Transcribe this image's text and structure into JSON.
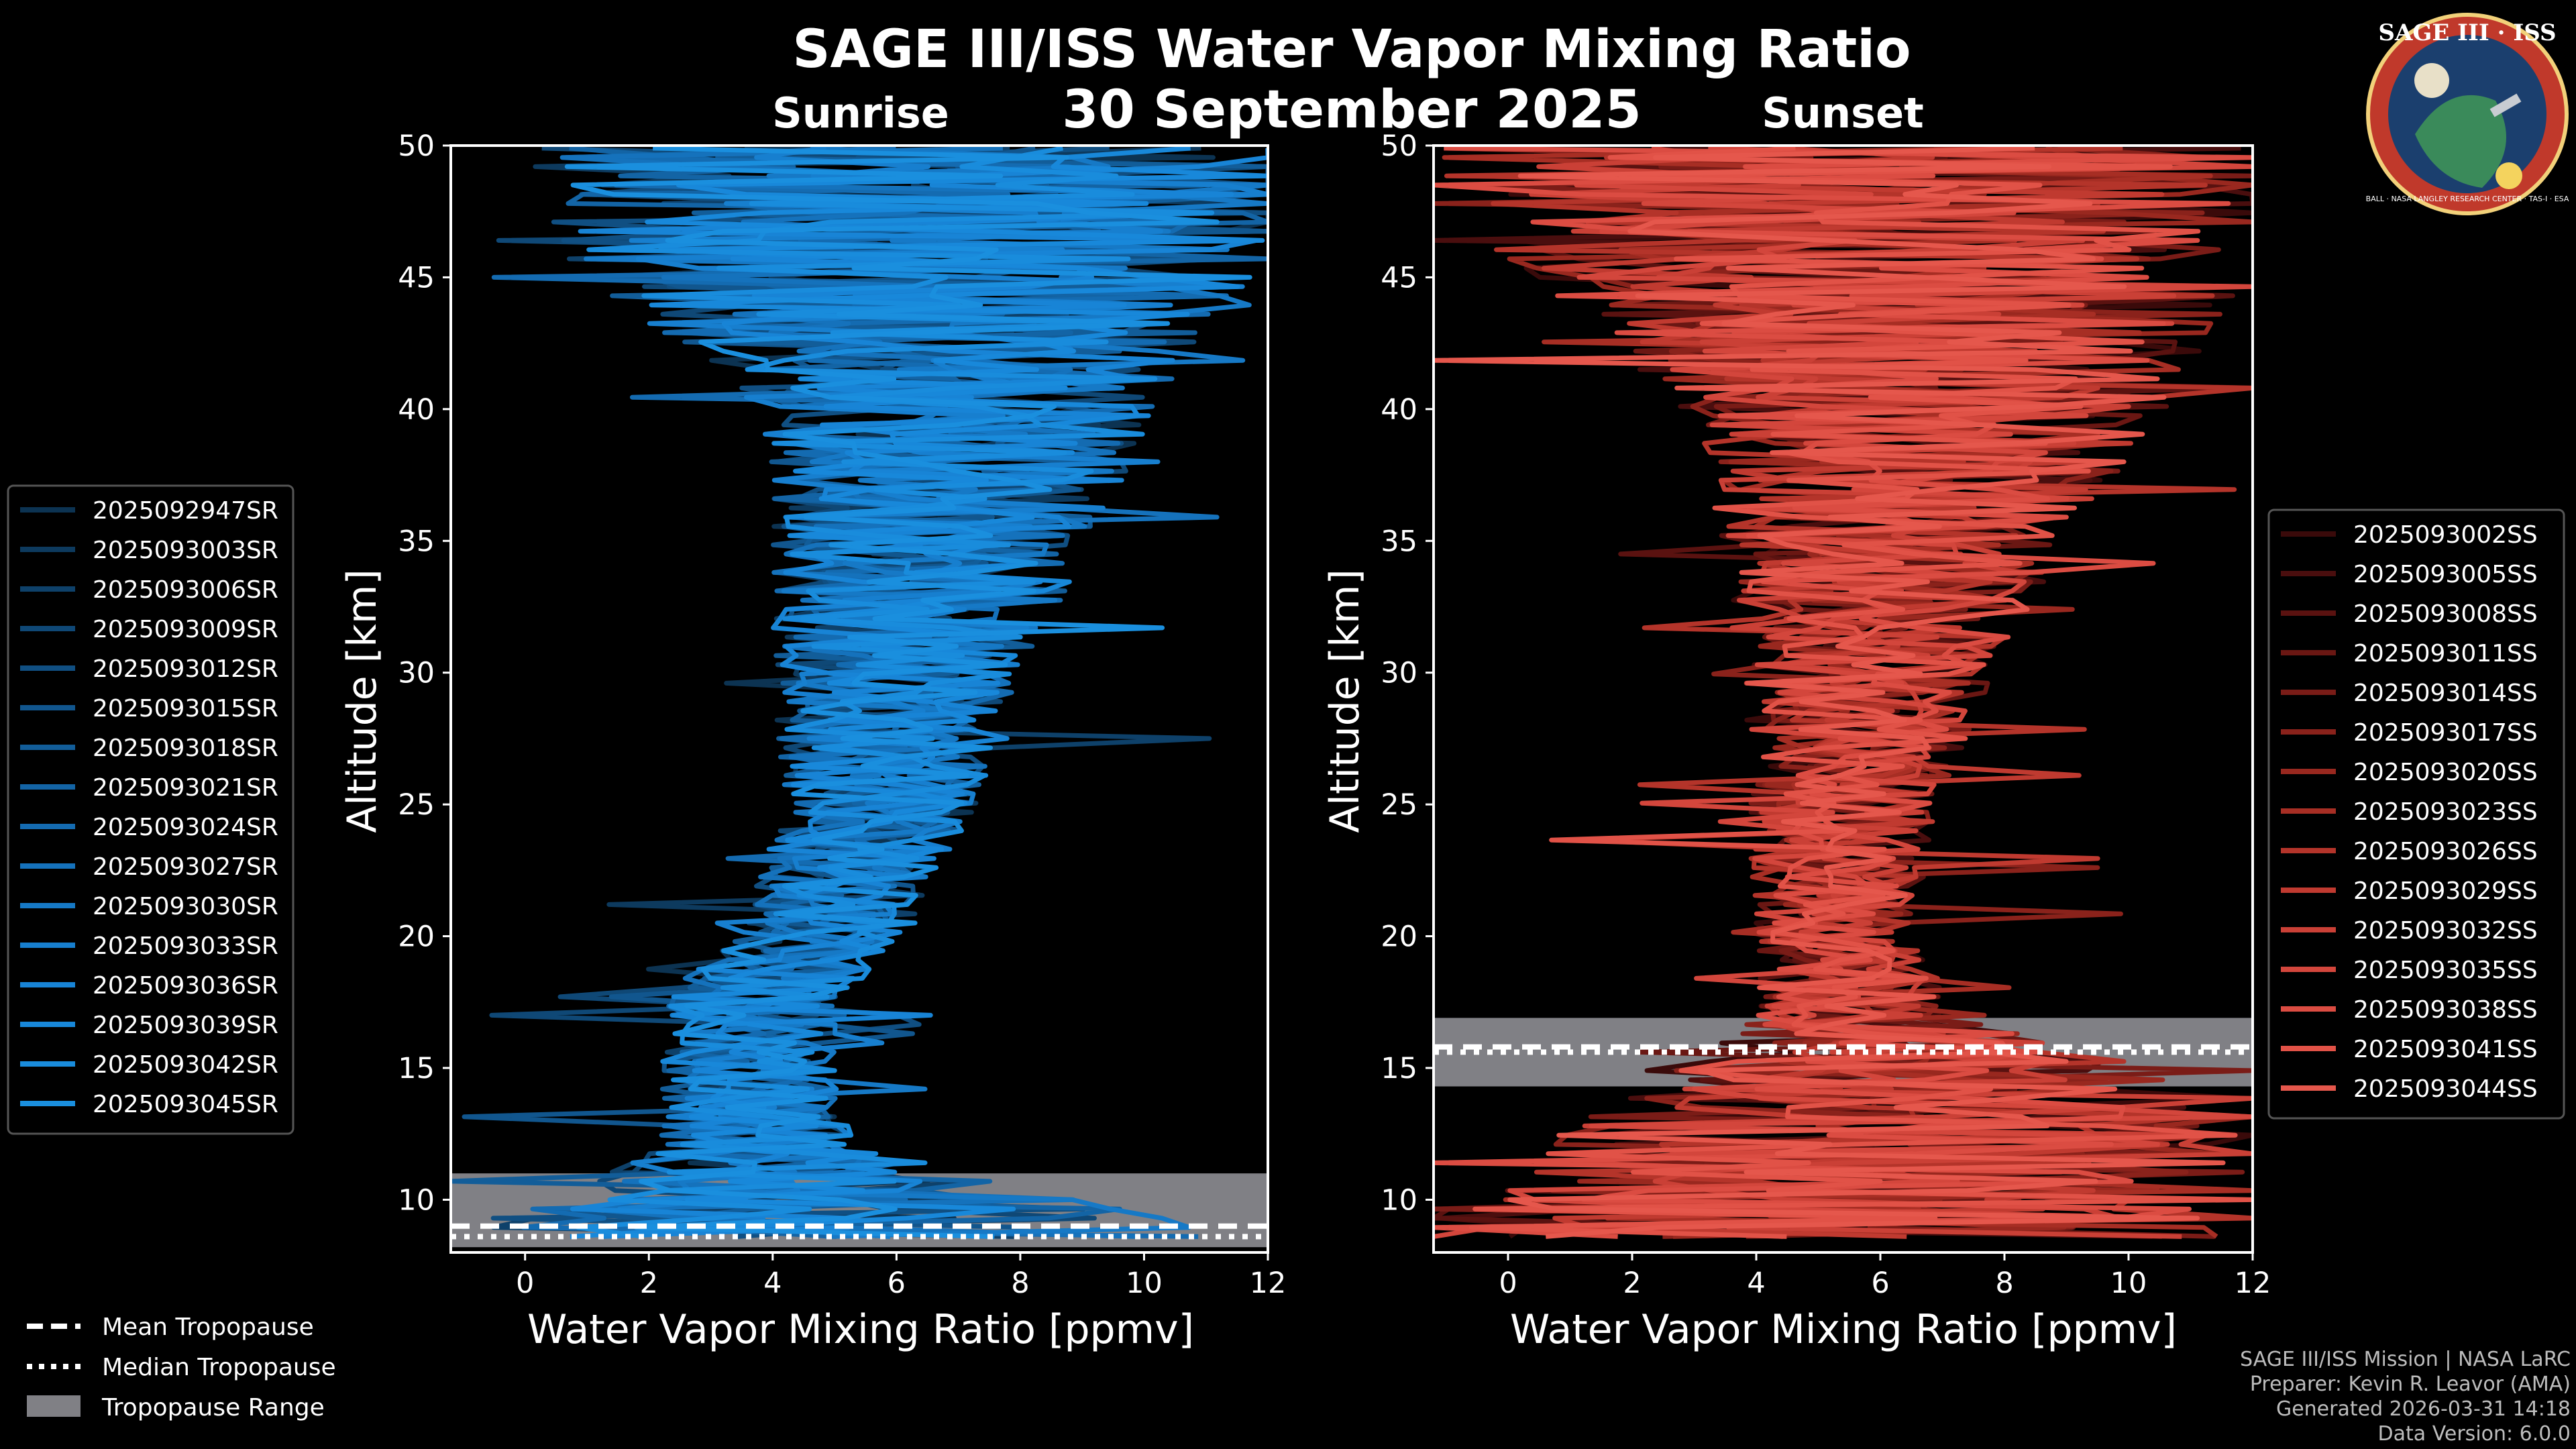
{
  "header": {
    "title": "SAGE III/ISS Water Vapor Mixing Ratio",
    "date": "30 September 2025",
    "left_panel_label": "Sunrise",
    "right_panel_label": "Sunset"
  },
  "logo": {
    "text": "SAGE III · ISS",
    "subtext": "BALL · NASA LANGLEY RESEARCH CENTER · TAS-I · ESA"
  },
  "legend_tropopause": {
    "mean": "Mean Tropopause",
    "median": "Median Tropopause",
    "range": "Tropopause Range"
  },
  "credits": {
    "line1": "SAGE III/ISS Mission | NASA LaRC",
    "line2": "Preparer: Kevin R. Leavor (AMA)",
    "line3": "Generated 2026-03-31 14:18",
    "line4": "Data Version: 6.0.0"
  },
  "colors": {
    "sunrise_accent": "#1a8fd6",
    "sunset_accent": "#e5574a",
    "tropopause_range": "#808085",
    "background": "#000000"
  },
  "chart_data": [
    {
      "type": "line",
      "name": "sunrise",
      "title": "Sunrise",
      "xlabel": "Water Vapor Mixing Ratio [ppmv]",
      "ylabel": "Altitude [km]",
      "xlim": [
        -1.2,
        12
      ],
      "ylim": [
        8,
        50
      ],
      "xticks": [
        0,
        2,
        4,
        6,
        8,
        10,
        12
      ],
      "yticks": [
        10,
        15,
        20,
        25,
        30,
        35,
        40,
        45,
        50
      ],
      "legend_position": "left",
      "tropopause": {
        "mean": 9.0,
        "median": 8.6,
        "range": [
          8.2,
          11.0
        ]
      },
      "series": [
        {
          "name": "2025092947SR",
          "color": "#0c3352"
        },
        {
          "name": "2025093003SR",
          "color": "#0d3a5e"
        },
        {
          "name": "2025093006SR",
          "color": "#0e416a"
        },
        {
          "name": "2025093009SR",
          "color": "#0f4876"
        },
        {
          "name": "2025093012SR",
          "color": "#104f82"
        },
        {
          "name": "2025093015SR",
          "color": "#11568e"
        },
        {
          "name": "2025093018SR",
          "color": "#125d99"
        },
        {
          "name": "2025093021SR",
          "color": "#1364a5"
        },
        {
          "name": "2025093024SR",
          "color": "#146bb1"
        },
        {
          "name": "2025093027SR",
          "color": "#1572bc"
        },
        {
          "name": "2025093030SR",
          "color": "#1679c6"
        },
        {
          "name": "2025093033SR",
          "color": "#177fcf"
        },
        {
          "name": "2025093036SR",
          "color": "#1884d6"
        },
        {
          "name": "2025093039SR",
          "color": "#1888da"
        },
        {
          "name": "2025093042SR",
          "color": "#198cdc"
        },
        {
          "name": "2025093045SR",
          "color": "#1a8fde"
        }
      ],
      "profile_envelope": [
        {
          "alt": 9,
          "center": 5.0,
          "spread": 6.0
        },
        {
          "alt": 10,
          "center": 4.8,
          "spread": 4.5
        },
        {
          "alt": 12,
          "center": 3.8,
          "spread": 1.6
        },
        {
          "alt": 15,
          "center": 3.6,
          "spread": 1.4
        },
        {
          "alt": 18,
          "center": 3.8,
          "spread": 1.5
        },
        {
          "alt": 20,
          "center": 4.8,
          "spread": 1.3
        },
        {
          "alt": 25,
          "center": 5.7,
          "spread": 1.6
        },
        {
          "alt": 30,
          "center": 6.0,
          "spread": 2.0
        },
        {
          "alt": 35,
          "center": 6.6,
          "spread": 2.6
        },
        {
          "alt": 40,
          "center": 7.0,
          "spread": 3.2
        },
        {
          "alt": 45,
          "center": 6.5,
          "spread": 5.5
        },
        {
          "alt": 50,
          "center": 6.5,
          "spread": 7.0
        }
      ]
    },
    {
      "type": "line",
      "name": "sunset",
      "title": "Sunset",
      "xlabel": "Water Vapor Mixing Ratio [ppmv]",
      "ylabel": "Altitude [km]",
      "xlim": [
        -1.2,
        12
      ],
      "ylim": [
        8,
        50
      ],
      "xticks": [
        0,
        2,
        4,
        6,
        8,
        10,
        12
      ],
      "yticks": [
        10,
        15,
        20,
        25,
        30,
        35,
        40,
        45,
        50
      ],
      "legend_position": "right",
      "tropopause": {
        "mean": 15.8,
        "median": 15.6,
        "range": [
          14.3,
          16.9
        ]
      },
      "series": [
        {
          "name": "2025093002SS",
          "color": "#3a0a0a"
        },
        {
          "name": "2025093005SS",
          "color": "#4a0e0e"
        },
        {
          "name": "2025093008SS",
          "color": "#5a1210"
        },
        {
          "name": "2025093011SS",
          "color": "#6a1713"
        },
        {
          "name": "2025093014SS",
          "color": "#7a1c17"
        },
        {
          "name": "2025093017SS",
          "color": "#8a221b"
        },
        {
          "name": "2025093020SS",
          "color": "#99281f"
        },
        {
          "name": "2025093023SS",
          "color": "#a72e24"
        },
        {
          "name": "2025093026SS",
          "color": "#b4342a"
        },
        {
          "name": "2025093029SS",
          "color": "#c03a30"
        },
        {
          "name": "2025093032SS",
          "color": "#ca4036"
        },
        {
          "name": "2025093035SS",
          "color": "#d3463c"
        },
        {
          "name": "2025093038SS",
          "color": "#db4c42"
        },
        {
          "name": "2025093041SS",
          "color": "#e15247"
        },
        {
          "name": "2025093044SS",
          "color": "#e5574c"
        }
      ],
      "profile_envelope": [
        {
          "alt": 9,
          "center": 5.0,
          "spread": 7.5
        },
        {
          "alt": 14,
          "center": 7.0,
          "spread": 5.0
        },
        {
          "alt": 17,
          "center": 5.6,
          "spread": 1.6
        },
        {
          "alt": 20,
          "center": 5.2,
          "spread": 1.3
        },
        {
          "alt": 25,
          "center": 5.5,
          "spread": 1.6
        },
        {
          "alt": 30,
          "center": 5.8,
          "spread": 2.0
        },
        {
          "alt": 35,
          "center": 6.2,
          "spread": 2.8
        },
        {
          "alt": 40,
          "center": 6.8,
          "spread": 3.8
        },
        {
          "alt": 45,
          "center": 6.0,
          "spread": 6.0
        },
        {
          "alt": 50,
          "center": 6.0,
          "spread": 7.5
        }
      ]
    }
  ]
}
